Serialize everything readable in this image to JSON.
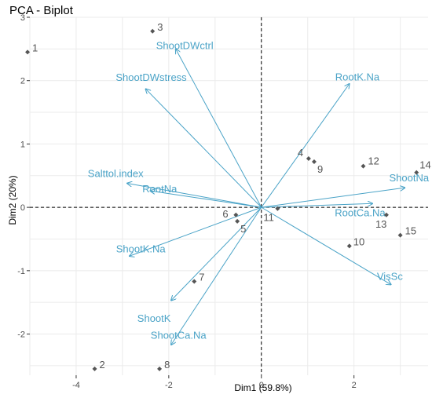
{
  "chart_data": {
    "type": "scatter",
    "title": "PCA - Biplot",
    "xlabel": "Dim1 (59.8%)",
    "ylabel": "Dim2 (20%)",
    "xlim": [
      -5.0,
      3.6
    ],
    "ylim": [
      -2.65,
      3.0
    ],
    "x_ticks": [
      -4,
      -2,
      0,
      2
    ],
    "y_ticks": [
      -2,
      -1,
      0,
      1,
      2,
      3
    ],
    "grid": true,
    "reference_lines": {
      "x": 0,
      "y": 0
    },
    "colors": {
      "points": "#555555",
      "arrows": "#4aa3c7"
    },
    "points": [
      {
        "label": "1",
        "x": -5.05,
        "y": 2.45
      },
      {
        "label": "2",
        "x": -3.6,
        "y": -2.55
      },
      {
        "label": "3",
        "x": -2.35,
        "y": 2.78
      },
      {
        "label": "4",
        "x": 1.02,
        "y": 0.77
      },
      {
        "label": "5",
        "x": -0.52,
        "y": -0.22
      },
      {
        "label": "6",
        "x": -0.55,
        "y": -0.12
      },
      {
        "label": "7",
        "x": -1.45,
        "y": -1.17
      },
      {
        "label": "8",
        "x": -2.2,
        "y": -2.55
      },
      {
        "label": "9",
        "x": 1.14,
        "y": 0.72
      },
      {
        "label": "10",
        "x": 1.9,
        "y": -0.61
      },
      {
        "label": "11",
        "x": 0.35,
        "y": -0.02
      },
      {
        "label": "12",
        "x": 2.2,
        "y": 0.65
      },
      {
        "label": "13",
        "x": 2.7,
        "y": -0.12
      },
      {
        "label": "14",
        "x": 3.35,
        "y": 0.55
      },
      {
        "label": "15",
        "x": 3.0,
        "y": -0.44
      }
    ],
    "variables": [
      {
        "name": "ShootDWctrl",
        "x": -1.85,
        "y": 2.5
      },
      {
        "name": "ShootDWstress",
        "x": -2.5,
        "y": 1.87
      },
      {
        "name": "RootK.Na",
        "x": 1.9,
        "y": 1.95
      },
      {
        "name": "Salttol.index",
        "x": -2.9,
        "y": 0.38
      },
      {
        "name": "RootNa",
        "x": -2.4,
        "y": 0.26
      },
      {
        "name": "ShootNa",
        "x": 3.1,
        "y": 0.31
      },
      {
        "name": "RootCa.Na",
        "x": 2.4,
        "y": 0.06
      },
      {
        "name": "ShootK.Na",
        "x": -2.85,
        "y": -0.77
      },
      {
        "name": "VisSc",
        "x": 2.8,
        "y": -1.22
      },
      {
        "name": "ShootK",
        "x": -1.95,
        "y": -1.47
      },
      {
        "name": "ShootCa.Na",
        "x": -1.95,
        "y": -2.17
      }
    ]
  }
}
